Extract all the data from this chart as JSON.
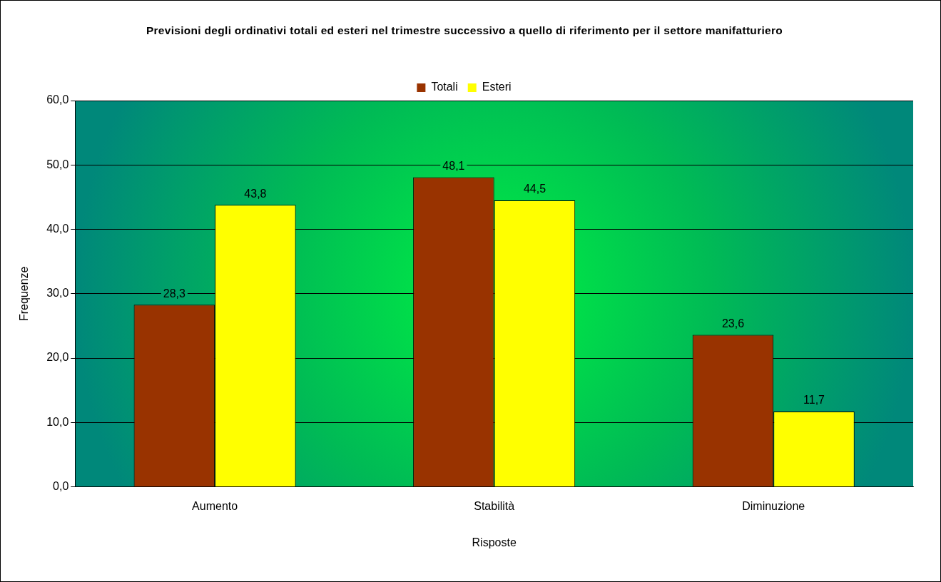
{
  "chart_data": {
    "type": "bar",
    "title": "Previsioni degli ordinativi totali ed esteri nel trimestre successivo a quello di riferimento per il settore manifatturiero",
    "xlabel": "Risposte",
    "ylabel": "Frequenze",
    "categories": [
      "Aumento",
      "Stabilità",
      "Diminuzione"
    ],
    "series": [
      {
        "name": "Totali",
        "color": "#993300",
        "values": [
          28.3,
          48.1,
          23.6
        ],
        "value_labels": [
          "28,3",
          "48,1",
          "23,6"
        ]
      },
      {
        "name": "Esteri",
        "color": "#ffff00",
        "values": [
          43.8,
          44.5,
          11.7
        ],
        "value_labels": [
          "43,8",
          "44,5",
          "11,7"
        ]
      }
    ],
    "ylim": [
      0,
      60
    ],
    "yticks": [
      {
        "value": 0,
        "label": "0,0"
      },
      {
        "value": 10,
        "label": "10,0"
      },
      {
        "value": 20,
        "label": "20,0"
      },
      {
        "value": 30,
        "label": "30,0"
      },
      {
        "value": 40,
        "label": "40,0"
      },
      {
        "value": 50,
        "label": "50,0"
      },
      {
        "value": 60,
        "label": "60,0"
      }
    ],
    "grid": "y",
    "legend": "top"
  }
}
